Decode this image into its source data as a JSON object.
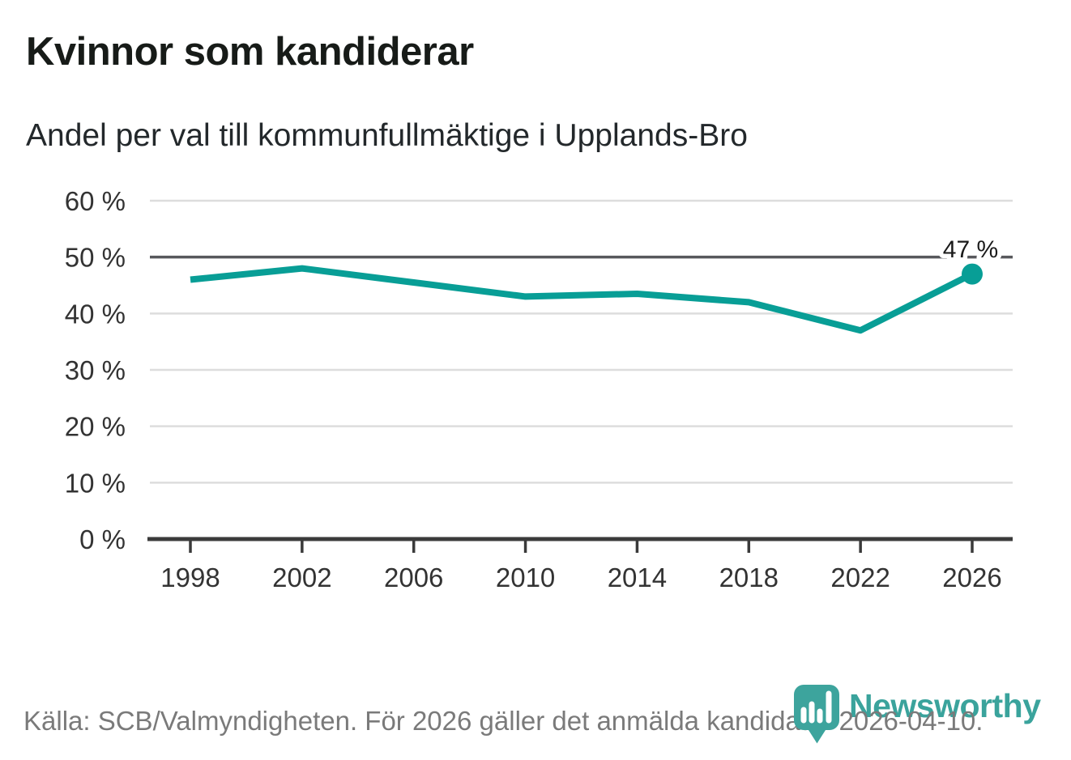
{
  "header": {
    "title": "Kvinnor som kandiderar",
    "subtitle": "Andel per val till kommunfullmäktige i Upplands-Bro"
  },
  "chart_data": {
    "type": "line",
    "x": [
      1998,
      2002,
      2006,
      2010,
      2014,
      2018,
      2022,
      2026
    ],
    "values": [
      46,
      48,
      45.5,
      43,
      43.5,
      42,
      37,
      47
    ],
    "title": "Kvinnor som kandiderar",
    "subtitle": "Andel per val till kommunfullmäktige i Upplands-Bro",
    "xlabel": "",
    "ylabel": "",
    "ylim": [
      0,
      60
    ],
    "ytick_step": 10,
    "ytick_suffix": " %",
    "grid": "horizontal",
    "highlight_gridline": 50,
    "legend": "none",
    "last_point_label": "47 %",
    "last_point_marker": true
  },
  "footer": {
    "source": "Källa: SCB/Valmyndigheten. För 2026 gäller det anmälda kandidater 2026-04-10."
  },
  "logo": {
    "text": "Newsworthy",
    "icon": "newsworthy-pin-chart-icon"
  },
  "colors": {
    "line": "#089e96",
    "dot": "#089e96",
    "grid": "#dddddd",
    "grid_highlight": "#57585c",
    "axis": "#3a3a3a",
    "tick_text": "#333333",
    "annotation_text": "#1a1a1a",
    "title_text": "#171b18",
    "footer_text": "#7a7a7a",
    "logo_teal": "#3aa39c"
  }
}
